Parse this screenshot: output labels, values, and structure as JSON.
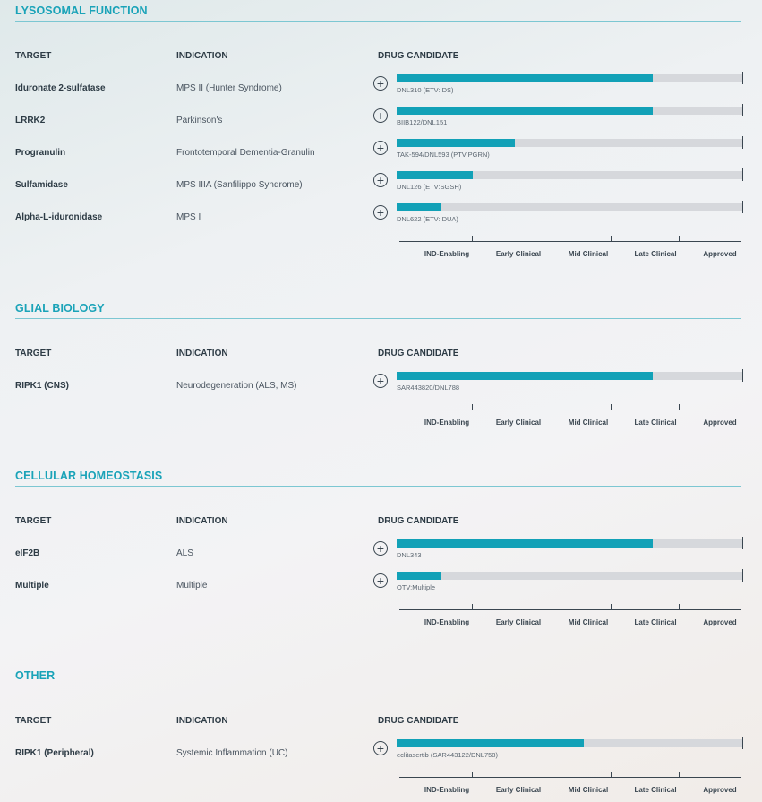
{
  "columns": {
    "target": "TARGET",
    "indication": "INDICATION",
    "drug": "DRUG CANDIDATE"
  },
  "stages": [
    "IND-Enabling",
    "Early Clinical",
    "Mid Clinical",
    "Late Clinical",
    "Approved"
  ],
  "colors": {
    "accent": "#1aa3b8",
    "bar_fill": "#12a1b7",
    "bar_track": "#d6d8dc"
  },
  "sections": [
    {
      "title": "LYSOSOMAL FUNCTION",
      "rows": [
        {
          "target": "Iduronate 2-sulfatase",
          "indication": "MPS II (Hunter Syndrome)",
          "drug": "DNL310 (ETV:IDS)",
          "progress": 0.74
        },
        {
          "target": "LRRK2",
          "indication": "Parkinson's",
          "drug": "BIIB122/DNL151",
          "progress": 0.74
        },
        {
          "target": "Progranulin",
          "indication": "Frontotemporal Dementia-Granulin",
          "drug": "TAK-594/DNL593 (PTV:PGRN)",
          "progress": 0.34
        },
        {
          "target": "Sulfamidase",
          "indication": "MPS IIIA (Sanfilippo Syndrome)",
          "drug": "DNL126 (ETV:SGSH)",
          "progress": 0.22
        },
        {
          "target": "Alpha-L-iduronidase",
          "indication": "MPS I",
          "drug": "DNL622 (ETV:IDUA)",
          "progress": 0.13
        }
      ]
    },
    {
      "title": "GLIAL BIOLOGY",
      "rows": [
        {
          "target": "RIPK1 (CNS)",
          "indication": "Neurodegeneration (ALS, MS)",
          "drug": "SAR443820/DNL788",
          "progress": 0.74
        }
      ]
    },
    {
      "title": "CELLULAR HOMEOSTASIS",
      "rows": [
        {
          "target": "eIF2B",
          "indication": "ALS",
          "drug": "DNL343",
          "progress": 0.74
        },
        {
          "target": "Multiple",
          "indication": "Multiple",
          "drug": "OTV:Multiple",
          "progress": 0.13
        }
      ]
    },
    {
      "title": "OTHER",
      "rows": [
        {
          "target": "RIPK1 (Peripheral)",
          "indication": "Systemic Inflammation (UC)",
          "drug": "eclitasertib (SAR443122/DNL758)",
          "progress": 0.54
        }
      ]
    }
  ]
}
